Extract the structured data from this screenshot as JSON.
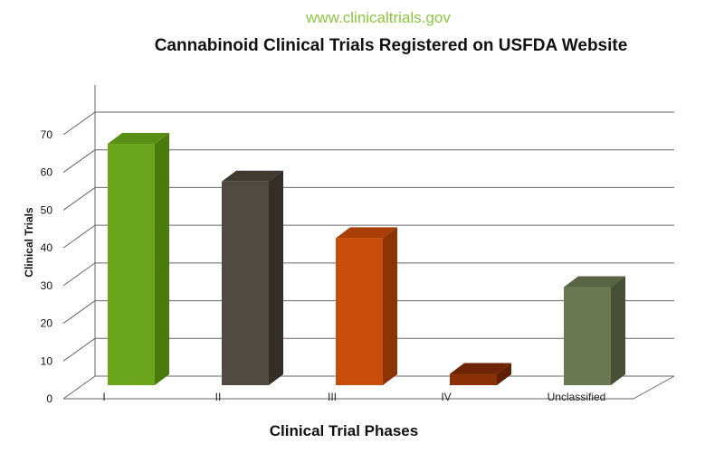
{
  "chart_data": {
    "type": "bar",
    "source": "www.clinicaltrials.gov",
    "title": "Cannabinoid Clinical Trials Registered on USFDA Website",
    "xlabel": "Clinical Trial Phases",
    "ylabel": "Clinical Trials",
    "categories": [
      "I",
      "II",
      "III",
      "IV",
      "Unclassified"
    ],
    "values": [
      64,
      54,
      39,
      3,
      26
    ],
    "ylim": [
      0,
      70
    ],
    "yticks": [
      0,
      10,
      20,
      30,
      40,
      50,
      60,
      70
    ],
    "grid": true,
    "legend": "none",
    "colors": {
      "source": "#8cc63f",
      "title": "#111111",
      "grid": "#666666",
      "bars": [
        {
          "front": "#6aa51c",
          "side": "#4a7a0e",
          "top": "#5a8f16"
        },
        {
          "front": "#514a40",
          "side": "#332e28",
          "top": "#403a32"
        },
        {
          "front": "#c94e0a",
          "side": "#8e3305",
          "top": "#a83f07"
        },
        {
          "front": "#8a3108",
          "side": "#5e1f03",
          "top": "#6e2505"
        },
        {
          "front": "#6b7752",
          "side": "#474f35",
          "top": "#596444"
        }
      ]
    }
  }
}
